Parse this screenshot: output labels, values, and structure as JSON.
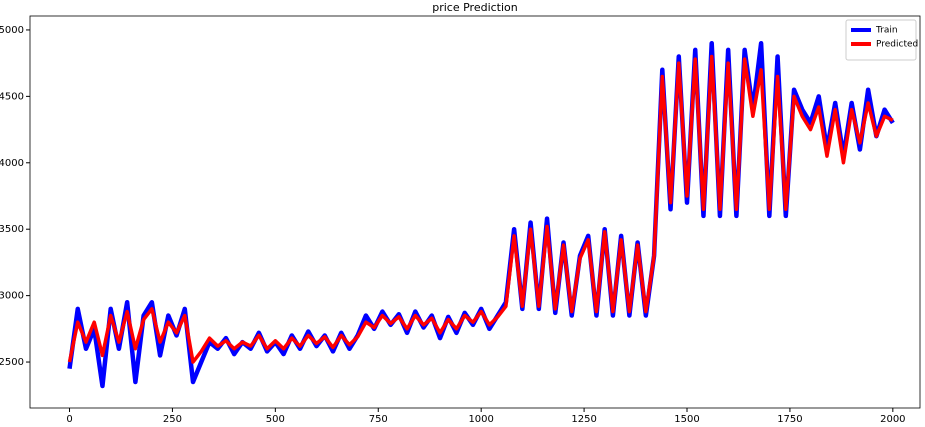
{
  "chart_data": {
    "type": "line",
    "title": "price Prediction",
    "x": [
      0,
      20,
      40,
      60,
      80,
      100,
      120,
      140,
      160,
      180,
      200,
      220,
      240,
      260,
      280,
      300,
      320,
      340,
      360,
      380,
      400,
      420,
      440,
      460,
      480,
      500,
      520,
      540,
      560,
      580,
      600,
      620,
      640,
      660,
      680,
      700,
      720,
      740,
      760,
      780,
      800,
      820,
      840,
      860,
      880,
      900,
      920,
      940,
      960,
      980,
      1000,
      1020,
      1040,
      1060,
      1080,
      1100,
      1120,
      1140,
      1160,
      1180,
      1200,
      1220,
      1240,
      1260,
      1280,
      1300,
      1320,
      1340,
      1360,
      1380,
      1400,
      1420,
      1440,
      1460,
      1480,
      1500,
      1520,
      1540,
      1560,
      1580,
      1600,
      1620,
      1640,
      1660,
      1680,
      1700,
      1720,
      1740,
      1760,
      1780,
      1800,
      1820,
      1840,
      1860,
      1880,
      1900,
      1920,
      1940,
      1960,
      1980,
      2000
    ],
    "series": [
      {
        "name": "Train",
        "color": "#0000ff",
        "values": [
          2450,
          2900,
          2600,
          2750,
          2320,
          2900,
          2600,
          2950,
          2350,
          2850,
          2950,
          2550,
          2850,
          2700,
          2900,
          2350,
          2500,
          2650,
          2600,
          2680,
          2560,
          2650,
          2600,
          2720,
          2580,
          2650,
          2560,
          2700,
          2600,
          2730,
          2620,
          2700,
          2580,
          2720,
          2600,
          2700,
          2850,
          2750,
          2880,
          2780,
          2860,
          2720,
          2880,
          2760,
          2850,
          2680,
          2840,
          2720,
          2870,
          2780,
          2900,
          2750,
          2850,
          2950,
          3500,
          2900,
          3550,
          2900,
          3580,
          2870,
          3400,
          2850,
          3300,
          3450,
          2850,
          3500,
          2850,
          3450,
          2850,
          3400,
          2850,
          3300,
          4700,
          3650,
          4800,
          3700,
          4850,
          3600,
          4900,
          3600,
          4850,
          3600,
          4850,
          4400,
          4900,
          3600,
          4800,
          3600,
          4550,
          4400,
          4300,
          4500,
          4100,
          4450,
          4050,
          4450,
          4100,
          4550,
          4200,
          4400,
          4300
        ]
      },
      {
        "name": "Predicted",
        "color": "#ff0000",
        "values": [
          2500,
          2800,
          2650,
          2800,
          2550,
          2850,
          2650,
          2880,
          2600,
          2820,
          2900,
          2650,
          2800,
          2720,
          2850,
          2500,
          2580,
          2680,
          2620,
          2660,
          2600,
          2650,
          2620,
          2700,
          2600,
          2660,
          2600,
          2680,
          2620,
          2700,
          2640,
          2690,
          2610,
          2700,
          2630,
          2690,
          2800,
          2760,
          2850,
          2790,
          2840,
          2750,
          2850,
          2780,
          2830,
          2720,
          2820,
          2750,
          2850,
          2800,
          2880,
          2780,
          2840,
          2920,
          3450,
          2920,
          3500,
          2920,
          3520,
          2900,
          3380,
          2880,
          3280,
          3420,
          2880,
          3480,
          2880,
          3420,
          2880,
          3380,
          2880,
          3300,
          4650,
          3700,
          4750,
          3750,
          4780,
          3650,
          4800,
          3650,
          4750,
          3650,
          4780,
          4350,
          4700,
          3650,
          4650,
          3650,
          4500,
          4350,
          4250,
          4420,
          4050,
          4400,
          4000,
          4400,
          4150,
          4450,
          4200,
          4350,
          4320
        ]
      }
    ],
    "xlim": [
      -96,
      2066
    ],
    "ylim": [
      2154,
      5105
    ],
    "xticks": [
      0,
      250,
      500,
      750,
      1000,
      1250,
      1500,
      1750,
      2000
    ],
    "yticks": [
      2500,
      3000,
      3500,
      4000,
      4500,
      5000
    ],
    "legend": "upper right"
  }
}
